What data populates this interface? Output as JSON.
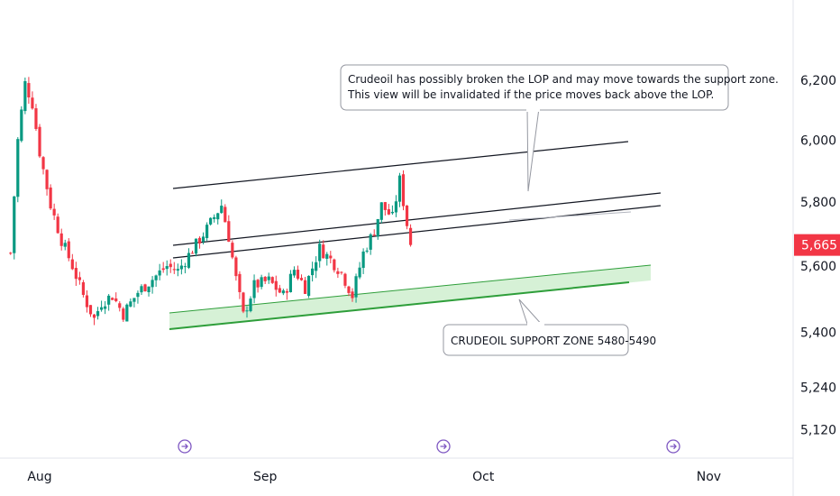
{
  "chart_data": {
    "type": "candlestick",
    "xaxis_labels": [
      {
        "label": "Aug",
        "day": 0
      },
      {
        "label": "Sep",
        "day": 31
      },
      {
        "label": "Oct",
        "day": 61
      },
      {
        "label": "Nov",
        "day": 92
      }
    ],
    "yaxis_ticks": [
      {
        "label": "6,200",
        "value": 6200
      },
      {
        "label": "6,000",
        "value": 6000
      },
      {
        "label": "5,800",
        "value": 5800
      },
      {
        "label": "5,600",
        "value": 5600
      },
      {
        "label": "5,400",
        "value": 5400
      },
      {
        "label": "5,240",
        "value": 5240
      },
      {
        "label": "5,120",
        "value": 5120
      }
    ],
    "yaxis_scale": "log",
    "last_price": {
      "label": "5,665",
      "value": 5665,
      "color": "#f23645"
    },
    "colors": {
      "up": "#089981",
      "down": "#f23645",
      "zone_fill": "#c8ecc8",
      "zone_line": "#2e9e3a",
      "channel": "#131722",
      "axis": "#e0e3eb",
      "text": "#131722"
    },
    "anchors": [
      {
        "day": -4.0,
        "price": 5640
      },
      {
        "day": -3.0,
        "price": 6000
      },
      {
        "day": -2.0,
        "price": 6190
      },
      {
        "day": -1.0,
        "price": 6120
      },
      {
        "day": 0.0,
        "price": 5960
      },
      {
        "day": 1.5,
        "price": 5790
      },
      {
        "day": 3.0,
        "price": 5680
      },
      {
        "day": 4.5,
        "price": 5600
      },
      {
        "day": 6.0,
        "price": 5510
      },
      {
        "day": 7.5,
        "price": 5440
      },
      {
        "day": 8.5,
        "price": 5490
      },
      {
        "day": 10.0,
        "price": 5510
      },
      {
        "day": 11.5,
        "price": 5455
      },
      {
        "day": 13.5,
        "price": 5520
      },
      {
        "day": 15.5,
        "price": 5560
      },
      {
        "day": 17.5,
        "price": 5600
      },
      {
        "day": 19.0,
        "price": 5585
      },
      {
        "day": 21.0,
        "price": 5650
      },
      {
        "day": 23.0,
        "price": 5715
      },
      {
        "day": 25.0,
        "price": 5790
      },
      {
        "day": 26.0,
        "price": 5690
      },
      {
        "day": 27.0,
        "price": 5560
      },
      {
        "day": 28.0,
        "price": 5450
      },
      {
        "day": 29.5,
        "price": 5540
      },
      {
        "day": 31.5,
        "price": 5555
      },
      {
        "day": 33.5,
        "price": 5510
      },
      {
        "day": 35.0,
        "price": 5590
      },
      {
        "day": 36.5,
        "price": 5535
      },
      {
        "day": 38.5,
        "price": 5655
      },
      {
        "day": 40.0,
        "price": 5620
      },
      {
        "day": 41.5,
        "price": 5580
      },
      {
        "day": 43.0,
        "price": 5510
      },
      {
        "day": 44.5,
        "price": 5640
      },
      {
        "day": 46.0,
        "price": 5710
      },
      {
        "day": 47.0,
        "price": 5790
      },
      {
        "day": 48.5,
        "price": 5750
      },
      {
        "day": 49.5,
        "price": 5870
      },
      {
        "day": 50.5,
        "price": 5730
      },
      {
        "day": 51.0,
        "price": 5665
      }
    ],
    "annotations": [
      {
        "text": "Crudeoil has possibly broken the LOP and may move towards the support zone.",
        "line2": "This view will be invalidated if the price moves back above the LOP."
      },
      {
        "text": "CRUDEOIL SUPPORT ZONE 5480-5490"
      }
    ],
    "event_markers": 3
  }
}
